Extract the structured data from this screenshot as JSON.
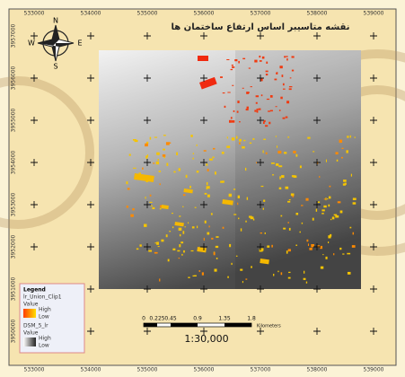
{
  "map": {
    "title": "نقشه متاسیبر اساس ارتفاع ساختمان ها",
    "x_labels_top": [
      "533000",
      "534000",
      "535000",
      "536000",
      "537000",
      "538000",
      "539000"
    ],
    "x_labels_bottom": [
      "533000",
      "534000",
      "535000",
      "536000",
      "537000",
      "538000",
      "539000"
    ],
    "y_labels": [
      "3957000",
      "3956000",
      "3955000",
      "3954000",
      "3953000",
      "3952000",
      "3951000",
      "3950000"
    ],
    "compass": {
      "north": "N",
      "south": "S",
      "east": "E",
      "west": "W"
    },
    "legend": {
      "title": "Legend",
      "layer1": "lr_Union_Clip1",
      "layer1_value": "Value",
      "layer1_high": "High",
      "layer1_low": "Low",
      "layer2": "DSM_5_lr",
      "layer2_value": "Value",
      "layer2_high": "High",
      "layer2_low": "Low"
    },
    "scale_bar": {
      "labels": [
        "0",
        "0.225",
        "0.45",
        "0.9",
        "1.35",
        "1.8"
      ],
      "unit": "Kilometers"
    },
    "scale_text": "1:30,000"
  }
}
